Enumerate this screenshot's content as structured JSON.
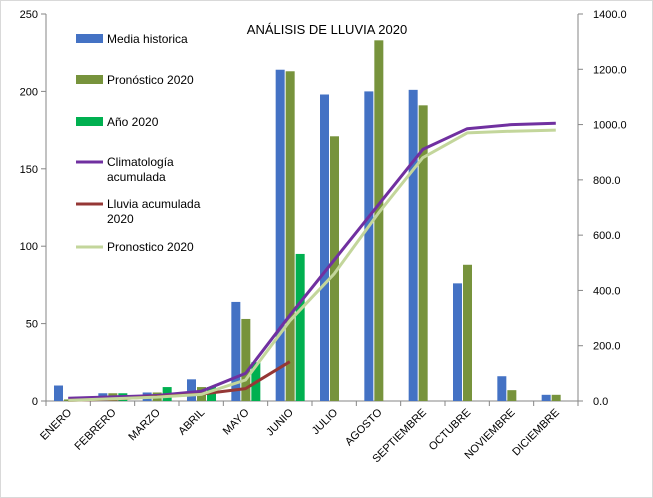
{
  "chart_data": {
    "type": "bar",
    "title": "ANÁLISIS DE LLUVIA 2020",
    "categories": [
      "ENERO",
      "FEBRERO",
      "MARZO",
      "ABRIL",
      "MAYO",
      "JUNIO",
      "JULIO",
      "AGOSTO",
      "SEPTIEMBRE",
      "OCTUBRE",
      "NOVIEMBRE",
      "DICIEMBRE"
    ],
    "y_left": {
      "min": 0,
      "max": 250,
      "ticks": [
        "0",
        "50",
        "100",
        "150",
        "200",
        "250"
      ]
    },
    "y_right": {
      "min": 0,
      "max": 1400,
      "ticks": [
        "0.0",
        "200.0",
        "400.0",
        "600.0",
        "800.0",
        "1000.0",
        "1200.0",
        "1400.0"
      ]
    },
    "grid": false,
    "legend_position": "left",
    "bar_series": [
      {
        "name": "Media historica",
        "color": "#4472c4",
        "values": [
          10,
          5,
          5.5,
          14,
          64,
          214,
          198,
          200,
          201,
          76,
          16,
          4
        ]
      },
      {
        "name": "Pronóstico 2020",
        "color": "#77933c",
        "values": [
          1,
          5,
          5.5,
          9,
          53,
          213,
          171,
          233,
          191,
          88,
          7,
          4
        ]
      },
      {
        "name": "Año 2020",
        "color": "#00b050",
        "values": [
          null,
          5,
          9,
          9,
          25,
          95,
          null,
          null,
          null,
          null,
          null,
          null
        ]
      }
    ],
    "line_series": [
      {
        "name": "Climatología\nacumulada",
        "color": "#7030a0",
        "axis": "right",
        "values": [
          10,
          15,
          20,
          35,
          100,
          310,
          510,
          710,
          910,
          985,
          1000,
          1005
        ]
      },
      {
        "name": "Lluvia acumulada\n2020",
        "color": "#953735",
        "axis": "right",
        "values": [
          2,
          7,
          16,
          25,
          45,
          142,
          null,
          null,
          null,
          null,
          null,
          null
        ]
      },
      {
        "name": "Pronostico 2020",
        "color": "#c3d69b",
        "axis": "right",
        "values": [
          2,
          8,
          14,
          24,
          76,
          290,
          460,
          680,
          880,
          970,
          976,
          980
        ]
      }
    ]
  }
}
